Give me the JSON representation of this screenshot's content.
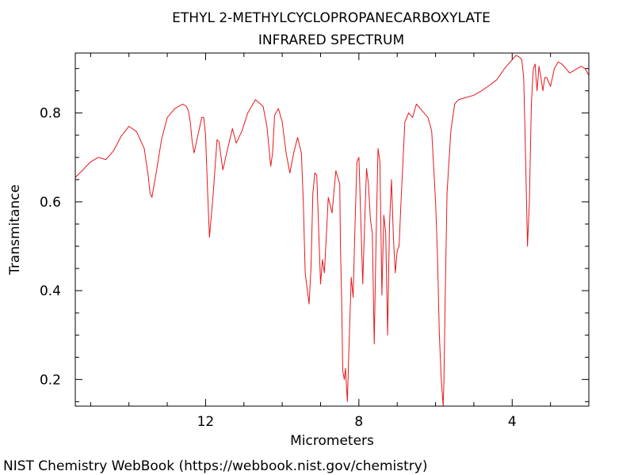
{
  "chart_data": {
    "type": "line",
    "title": "ETHYL 2-METHYLCYCLOPROPANECARBOXYLATE",
    "subtitle": "INFRARED SPECTRUM",
    "xlabel": "Micrometers",
    "ylabel": "Transmitance",
    "xlim": [
      15.4,
      2.0
    ],
    "ylim": [
      0.14,
      0.935
    ],
    "x_reversed": true,
    "x_ticks": [
      12,
      8,
      4
    ],
    "y_ticks": [
      0.2,
      0.4,
      0.6,
      0.8
    ],
    "grid": false,
    "line_color": "#e8161b",
    "series": [
      {
        "x": [
          15.4,
          15.2,
          15.0,
          14.8,
          14.6,
          14.4,
          14.2,
          14.0,
          13.8,
          13.6,
          13.5,
          13.45,
          13.4,
          13.3,
          13.15,
          13.0,
          12.8,
          12.6,
          12.5,
          12.45,
          12.4,
          12.35,
          12.3,
          12.2,
          12.1,
          12.05,
          12.0,
          11.95,
          11.9,
          11.8,
          11.7,
          11.65,
          11.55,
          11.5,
          11.45,
          11.3,
          11.2,
          11.05,
          10.9,
          10.7,
          10.5,
          10.4,
          10.3,
          10.25,
          10.2,
          10.1,
          10.0,
          9.9,
          9.8,
          9.7,
          9.6,
          9.5,
          9.45,
          9.4,
          9.3,
          9.25,
          9.2,
          9.15,
          9.1,
          9.0,
          8.95,
          8.9,
          8.85,
          8.8,
          8.7,
          8.6,
          8.5,
          8.48,
          8.45,
          8.42,
          8.38,
          8.35,
          8.3,
          8.25,
          8.2,
          8.15,
          8.1,
          8.05,
          8.0,
          7.9,
          7.85,
          7.8,
          7.75,
          7.7,
          7.65,
          7.6,
          7.55,
          7.5,
          7.45,
          7.4,
          7.35,
          7.3,
          7.25,
          7.2,
          7.15,
          7.1,
          7.05,
          7.0,
          6.95,
          6.9,
          6.8,
          6.7,
          6.6,
          6.5,
          6.4,
          6.3,
          6.2,
          6.1,
          6.0,
          5.95,
          5.9,
          5.85,
          5.8,
          5.78,
          5.75,
          5.7,
          5.6,
          5.5,
          5.4,
          5.2,
          5.0,
          4.8,
          4.6,
          4.4,
          4.2,
          4.0,
          3.9,
          3.8,
          3.75,
          3.7,
          3.65,
          3.6,
          3.55,
          3.5,
          3.45,
          3.4,
          3.38,
          3.35,
          3.3,
          3.25,
          3.2,
          3.15,
          3.1,
          3.05,
          3.0,
          2.95,
          2.9,
          2.8,
          2.7,
          2.6,
          2.5,
          2.4,
          2.3,
          2.2,
          2.1,
          2.0
        ],
        "y": [
          0.655,
          0.672,
          0.69,
          0.7,
          0.695,
          0.715,
          0.748,
          0.77,
          0.758,
          0.72,
          0.66,
          0.62,
          0.61,
          0.66,
          0.74,
          0.79,
          0.81,
          0.82,
          0.815,
          0.805,
          0.78,
          0.735,
          0.71,
          0.75,
          0.79,
          0.79,
          0.75,
          0.63,
          0.52,
          0.62,
          0.74,
          0.735,
          0.672,
          0.69,
          0.71,
          0.765,
          0.732,
          0.76,
          0.8,
          0.83,
          0.815,
          0.77,
          0.68,
          0.71,
          0.795,
          0.81,
          0.78,
          0.71,
          0.665,
          0.71,
          0.745,
          0.71,
          0.6,
          0.44,
          0.37,
          0.45,
          0.62,
          0.665,
          0.66,
          0.415,
          0.47,
          0.44,
          0.52,
          0.61,
          0.575,
          0.67,
          0.64,
          0.5,
          0.38,
          0.22,
          0.2,
          0.225,
          0.15,
          0.3,
          0.43,
          0.385,
          0.55,
          0.69,
          0.7,
          0.415,
          0.55,
          0.675,
          0.64,
          0.56,
          0.53,
          0.28,
          0.52,
          0.72,
          0.69,
          0.39,
          0.57,
          0.53,
          0.3,
          0.55,
          0.65,
          0.52,
          0.44,
          0.49,
          0.5,
          0.6,
          0.78,
          0.8,
          0.79,
          0.82,
          0.81,
          0.8,
          0.79,
          0.76,
          0.6,
          0.48,
          0.3,
          0.2,
          0.14,
          0.2,
          0.38,
          0.62,
          0.76,
          0.82,
          0.83,
          0.835,
          0.84,
          0.85,
          0.862,
          0.875,
          0.9,
          0.92,
          0.93,
          0.925,
          0.92,
          0.88,
          0.7,
          0.5,
          0.6,
          0.82,
          0.9,
          0.91,
          0.88,
          0.85,
          0.905,
          0.88,
          0.85,
          0.88,
          0.88,
          0.87,
          0.86,
          0.88,
          0.9,
          0.915,
          0.91,
          0.9,
          0.89,
          0.895,
          0.9,
          0.905,
          0.9,
          0.885
        ]
      }
    ]
  },
  "footer": "NIST Chemistry WebBook (https://webbook.nist.gov/chemistry)"
}
